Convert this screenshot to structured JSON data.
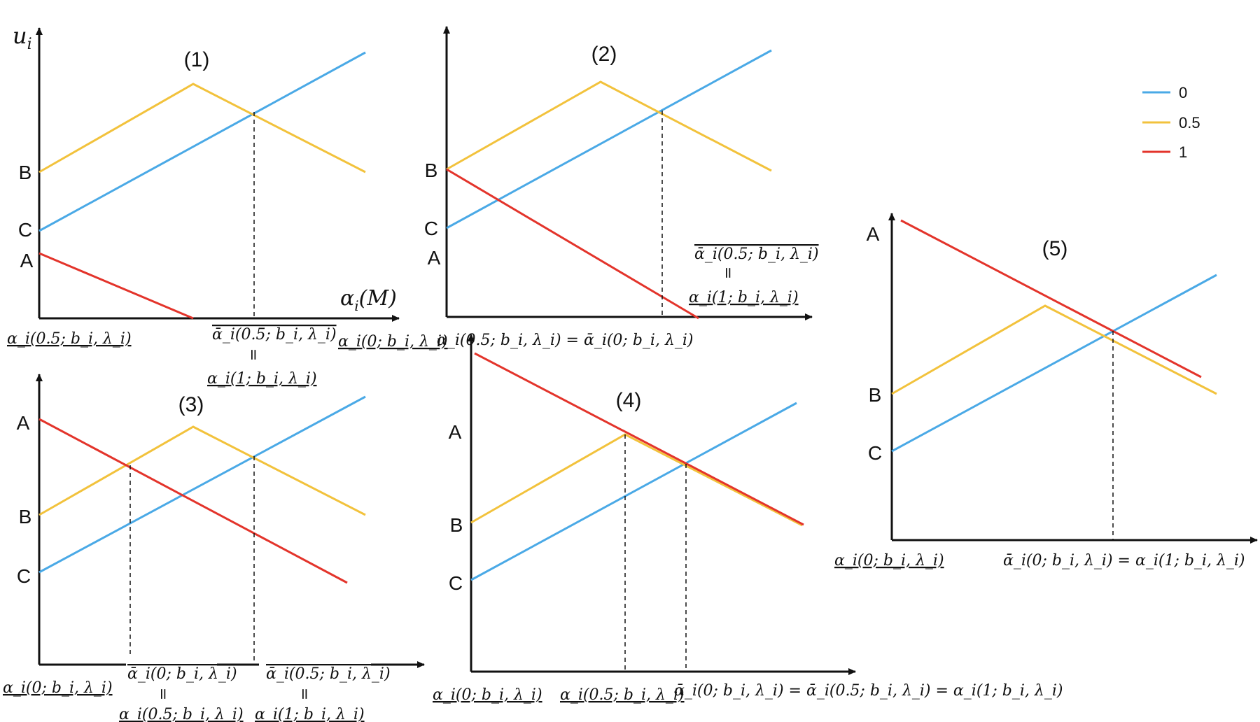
{
  "colors": {
    "blue": "#4aa9e6",
    "yellow": "#f2c23c",
    "red": "#e3342b",
    "axis": "#111111"
  },
  "legend": [
    {
      "label": "0",
      "color": "#4aa9e6"
    },
    {
      "label": "0.5",
      "color": "#f2c23c"
    },
    {
      "label": "1",
      "color": "#e3342b"
    }
  ],
  "axis_titles": {
    "y": "u",
    "y_sub": "i",
    "x": "α",
    "x_sub": "i",
    "x_arg": "(M)"
  },
  "panels": [
    {
      "id": "1",
      "title": "(1)",
      "letters": [
        "B",
        "C",
        "A"
      ]
    },
    {
      "id": "2",
      "title": "(2)",
      "letters": [
        "B",
        "C",
        "A"
      ]
    },
    {
      "id": "3",
      "title": "(3)",
      "letters": [
        "A",
        "B",
        "C"
      ]
    },
    {
      "id": "4",
      "title": "(4)",
      "letters": [
        "A",
        "B",
        "C"
      ]
    },
    {
      "id": "5",
      "title": "(5)",
      "letters": [
        "A",
        "B",
        "C"
      ]
    }
  ],
  "threshold_labels": {
    "p1": [
      "α_i(0.5; b_i, λ_i)",
      "ᾱ_i(0.5; b_i, λ_i)",
      "=",
      "α_i(1; b_i, λ_i)",
      "α_i(0; b_i, λ_i)"
    ],
    "p2": [
      "α_i(0.5; b_i, λ_i) = ᾱ_i(0; b_i, λ_i)",
      "ᾱ_i(0.5; b_i, λ_i)",
      "=",
      "α_i(1; b_i, λ_i)"
    ],
    "p3": [
      "α_i(0; b_i, λ_i)",
      "ᾱ_i(0; b_i, λ_i)",
      "=",
      "α_i(0.5; b_i, λ_i)",
      "ᾱ_i(0.5; b_i, λ_i)",
      "=",
      "α_i(1; b_i, λ_i)"
    ],
    "p4": [
      "α_i(0; b_i, λ_i)",
      "α_i(0.5; b_i, λ_i)",
      "ᾱ_i(0; b_i, λ_i) = ᾱ_i(0.5; b_i, λ_i) = α_i(1; b_i, λ_i)"
    ],
    "p5": [
      "α_i(0; b_i, λ_i)",
      "ᾱ_i(0; b_i, λ_i) = α_i(1; b_i, λ_i)"
    ]
  }
}
